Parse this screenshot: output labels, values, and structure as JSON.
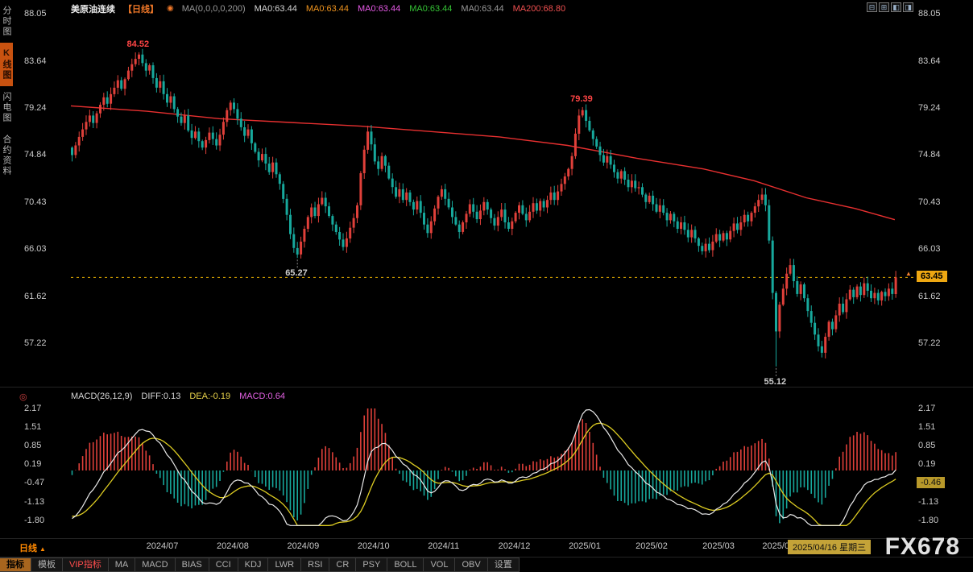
{
  "sidebar": {
    "tabs": [
      {
        "label": "分时图",
        "name": "tab-time-chart",
        "active": false
      },
      {
        "label": "K线图",
        "name": "tab-kline-chart",
        "active": true
      },
      {
        "label": "闪电图",
        "name": "tab-lightning-chart",
        "active": false
      },
      {
        "label": "合约资料",
        "name": "tab-contract-info",
        "active": false
      }
    ]
  },
  "header": {
    "title": "美原油连续",
    "period_tag": "【日线】",
    "pin_icon": "◉",
    "ma_items": [
      {
        "text": "MA(0,0,0,0,200)",
        "color": "#9a9a9a"
      },
      {
        "text": "MA0:63.44",
        "color": "#d8d8d8"
      },
      {
        "text": "MA0:63.44",
        "color": "#f0941e"
      },
      {
        "text": "MA0:63.44",
        "color": "#e85ae8"
      },
      {
        "text": "MA0:63.44",
        "color": "#35c435"
      },
      {
        "text": "MA0:63.44",
        "color": "#9a9a9a"
      },
      {
        "text": "MA200:68.80",
        "color": "#f05050"
      }
    ],
    "window_icons": [
      {
        "name": "split-2-window-icon",
        "glyph": "⊟"
      },
      {
        "name": "split-4-window-icon",
        "glyph": "⊞"
      },
      {
        "name": "layout-left-icon",
        "glyph": "◧"
      },
      {
        "name": "layout-right-icon",
        "glyph": "◨"
      }
    ]
  },
  "macd_panel": {
    "cycle_icon": "◎",
    "items": [
      {
        "text": "MACD(26,12,9)",
        "color": "#d8d8d8"
      },
      {
        "text": "DIFF:0.13",
        "color": "#d8d8d8"
      },
      {
        "text": "DEA:-0.19",
        "color": "#e8d24a"
      },
      {
        "text": "MACD:0.64",
        "color": "#e060e0"
      }
    ],
    "last_tag": "-0.46"
  },
  "footer": {
    "period_label": "日线",
    "period_arrow": "▲",
    "date_highlight": "2025/04/16 星期三",
    "tabs": [
      {
        "label": "指标",
        "name": "tab-indicator",
        "selected": true
      },
      {
        "label": "模板",
        "name": "tab-template"
      },
      {
        "label": "VIP指标",
        "name": "tab-vip-indicator",
        "vip": true
      },
      {
        "label": "MA",
        "name": "tab-ma"
      },
      {
        "label": "MACD",
        "name": "tab-macd"
      },
      {
        "label": "BIAS",
        "name": "tab-bias"
      },
      {
        "label": "CCI",
        "name": "tab-cci"
      },
      {
        "label": "KDJ",
        "name": "tab-kdj"
      },
      {
        "label": "LWR",
        "name": "tab-lwr"
      },
      {
        "label": "RSI",
        "name": "tab-rsi"
      },
      {
        "label": "CR",
        "name": "tab-cr"
      },
      {
        "label": "PSY",
        "name": "tab-psy"
      },
      {
        "label": "BOLL",
        "name": "tab-boll"
      },
      {
        "label": "VOL",
        "name": "tab-vol"
      },
      {
        "label": "OBV",
        "name": "tab-obv"
      },
      {
        "label": "设置",
        "name": "tab-settings"
      }
    ]
  },
  "watermark": "FX678",
  "chart_data": {
    "type": "candlestick",
    "title": "美原油连续【日线】",
    "y_ticks": [
      88.05,
      83.64,
      79.24,
      74.84,
      70.43,
      66.03,
      61.62,
      57.22
    ],
    "ylim": [
      57.22,
      88.05
    ],
    "x_labels": [
      {
        "label": "2024/07",
        "index": 22
      },
      {
        "label": "2024/08",
        "index": 42
      },
      {
        "label": "2024/09",
        "index": 62
      },
      {
        "label": "2024/10",
        "index": 82
      },
      {
        "label": "2024/11",
        "index": 102
      },
      {
        "label": "2024/12",
        "index": 122
      },
      {
        "label": "2025/01",
        "index": 142
      },
      {
        "label": "2025/02",
        "index": 161
      },
      {
        "label": "2025/03",
        "index": 180
      },
      {
        "label": "2025/04",
        "index": 197
      }
    ],
    "closes": [
      74.9,
      75.8,
      76.6,
      77.3,
      78.0,
      78.6,
      77.9,
      78.8,
      79.6,
      80.3,
      79.7,
      80.6,
      81.2,
      81.9,
      81.1,
      82.0,
      82.8,
      83.4,
      83.9,
      84.3,
      83.5,
      82.8,
      83.3,
      82.1,
      81.2,
      81.8,
      80.6,
      79.8,
      80.4,
      79.2,
      78.5,
      77.9,
      78.6,
      77.2,
      76.5,
      77.1,
      76.2,
      75.6,
      76.3,
      77.0,
      76.4,
      75.8,
      76.8,
      78.0,
      79.1,
      79.8,
      79.2,
      78.3,
      77.5,
      76.7,
      77.3,
      76.0,
      75.2,
      74.4,
      75.0,
      74.1,
      73.3,
      74.2,
      73.1,
      72.2,
      70.8,
      69.3,
      67.5,
      66.2,
      65.6,
      66.8,
      68.0,
      69.1,
      70.0,
      69.2,
      70.3,
      70.9,
      70.1,
      69.2,
      68.4,
      67.7,
      67.0,
      66.3,
      67.1,
      68.1,
      69.0,
      70.2,
      73.2,
      75.4,
      77.1,
      75.9,
      74.3,
      73.6,
      74.8,
      73.9,
      72.7,
      71.9,
      71.0,
      71.7,
      70.7,
      71.4,
      70.5,
      69.8,
      70.6,
      69.5,
      68.4,
      67.6,
      68.7,
      69.9,
      71.0,
      71.7,
      70.8,
      70.0,
      69.1,
      68.4,
      67.7,
      68.6,
      69.4,
      70.3,
      69.6,
      68.9,
      69.7,
      70.5,
      69.8,
      69.0,
      68.3,
      69.1,
      69.8,
      68.6,
      68.0,
      68.7,
      69.5,
      70.2,
      69.4,
      68.8,
      69.6,
      70.4,
      69.7,
      70.6,
      70.0,
      70.7,
      71.4,
      70.7,
      71.5,
      72.2,
      72.9,
      73.6,
      74.8,
      76.9,
      78.6,
      79.1,
      78.1,
      77.2,
      76.4,
      75.7,
      74.9,
      74.2,
      74.8,
      74.0,
      73.3,
      72.7,
      73.4,
      72.6,
      71.9,
      72.5,
      71.8,
      71.9,
      71.2,
      70.5,
      71.1,
      70.3,
      69.6,
      70.2,
      69.5,
      68.8,
      69.4,
      68.7,
      68.0,
      68.6,
      67.9,
      67.2,
      67.9,
      67.1,
      66.4,
      65.9,
      66.6,
      66.0,
      66.8,
      67.5,
      66.9,
      67.6,
      67.0,
      67.8,
      68.5,
      67.9,
      68.6,
      69.3,
      68.7,
      69.5,
      70.1,
      70.7,
      71.2,
      70.2,
      66.9,
      62.0,
      58.4,
      60.9,
      62.4,
      63.8,
      64.6,
      63.1,
      61.9,
      62.8,
      61.5,
      60.3,
      59.2,
      58.1,
      57.0,
      56.4,
      57.9,
      59.3,
      58.6,
      59.9,
      61.0,
      60.2,
      61.4,
      62.3,
      61.6,
      62.6,
      61.8,
      62.9,
      62.2,
      61.5,
      62.0,
      61.3,
      62.1,
      61.7,
      62.4,
      61.9,
      63.45
    ],
    "annotations": [
      {
        "index": 19,
        "price": 84.52,
        "type": "high",
        "label": "84.52",
        "color": "#ff4545"
      },
      {
        "index": 145,
        "price": 79.39,
        "type": "high",
        "label": "79.39",
        "color": "#ff4545"
      },
      {
        "index": 64,
        "price": 65.27,
        "type": "low",
        "label": "65.27",
        "color": "#cfcfcf"
      },
      {
        "index": 200,
        "price": 55.12,
        "type": "low",
        "label": "55.12",
        "color": "#cfcfcf"
      }
    ],
    "last_price": 63.45,
    "last_price_label": "63.45",
    "arrow_glyph": "▲",
    "ma200": {
      "color": "#e83030",
      "anchors": [
        [
          0,
          79.5
        ],
        [
          0.09,
          79.0
        ],
        [
          0.176,
          78.3
        ],
        [
          0.26,
          77.95
        ],
        [
          0.344,
          77.6
        ],
        [
          0.427,
          77.1
        ],
        [
          0.508,
          76.6
        ],
        [
          0.589,
          75.8
        ],
        [
          0.671,
          74.6
        ],
        [
          0.75,
          73.6
        ],
        [
          0.81,
          72.5
        ],
        [
          0.872,
          70.9
        ],
        [
          0.93,
          69.9
        ],
        [
          0.977,
          68.85
        ]
      ]
    },
    "macd": {
      "params": "26,12,9",
      "ticks": [
        2.17,
        1.51,
        0.85,
        0.19,
        -0.47,
        -1.13,
        -1.8
      ],
      "ylim": [
        -1.8,
        2.17
      ],
      "diff": 0.13,
      "dea": -0.19,
      "macd": 0.64,
      "last_axis_value": -0.46
    },
    "colors": {
      "up": "#e0403a",
      "down": "#17a89c",
      "dif": "#eaeaea",
      "dea": "#ddcc22",
      "last_line": "#e8b000"
    }
  }
}
